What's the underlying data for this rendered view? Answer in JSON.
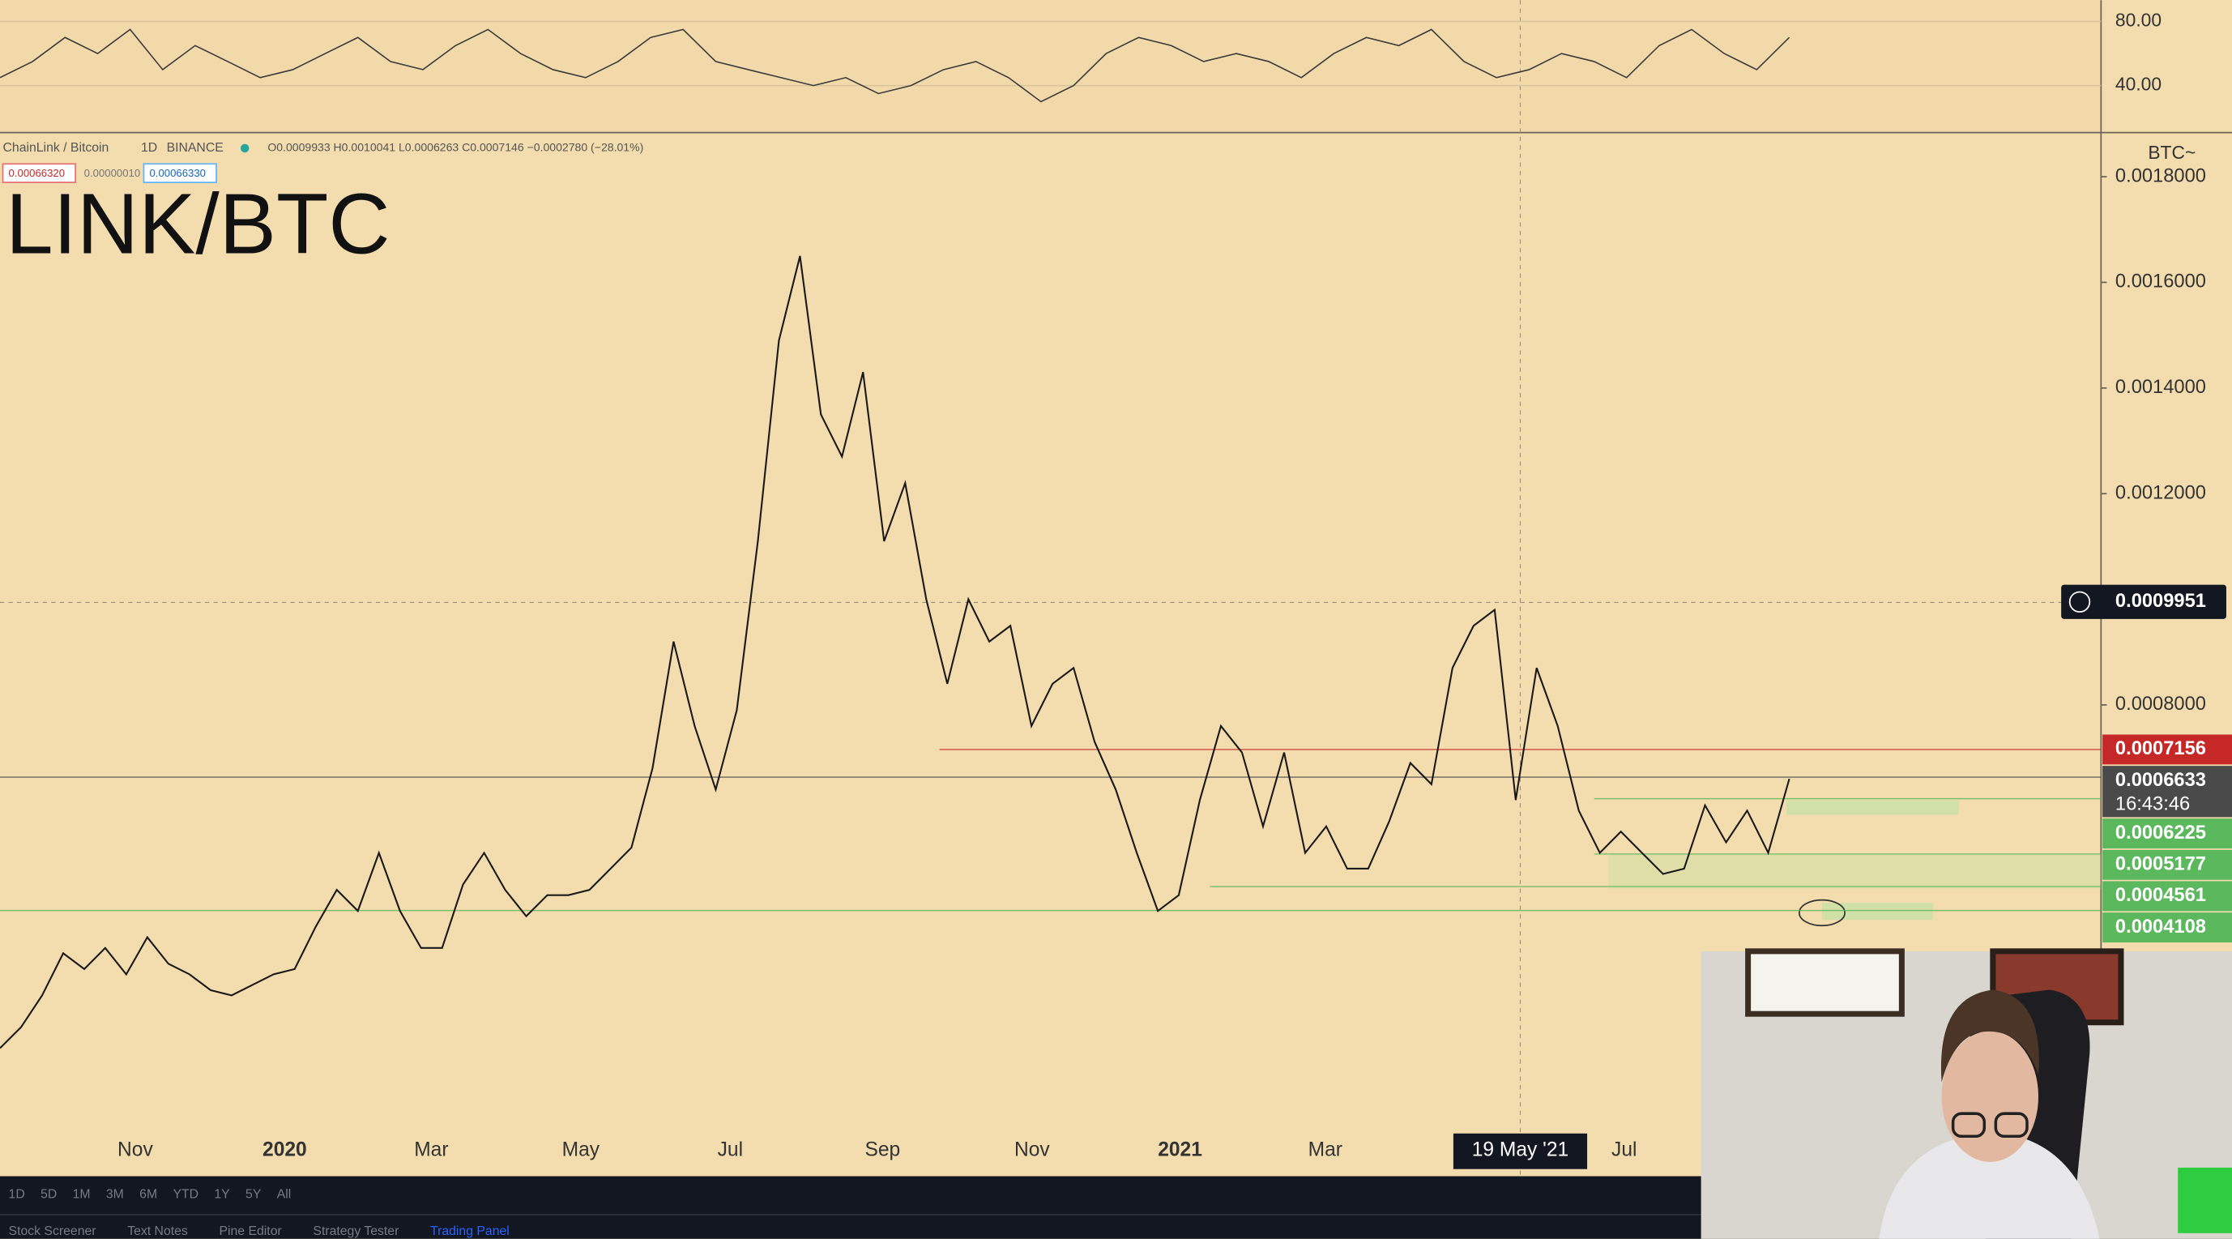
{
  "header": {
    "symbol": "ChainLink / Bitcoin",
    "interval": "1D",
    "exchange": "BINANCE",
    "ohlc": "O0.0009933 H0.0010041 L0.0006263 C0.0007146 −0.0002780 (−28.01%)",
    "inputs": [
      "0.00066320",
      "0.00000010",
      "0.00066330"
    ]
  },
  "title": "LINK/BTC",
  "chart_data": [
    {
      "type": "line",
      "color": "#3a3a3a",
      "values": [
        45,
        55,
        70,
        60,
        75,
        50,
        65,
        55,
        45,
        50,
        60,
        70,
        55,
        50,
        65,
        75,
        60,
        50,
        45,
        55,
        70,
        75,
        55,
        50,
        45,
        40,
        45,
        35,
        40,
        50,
        55,
        45,
        30,
        40,
        60,
        70,
        65,
        55,
        60,
        55,
        45,
        60,
        70,
        65,
        75,
        55,
        45,
        50,
        60,
        55,
        45,
        65,
        75,
        60,
        50,
        70
      ],
      "ylim": [
        10.7,
        93.3
      ],
      "yticks": [
        {
          "value": 80,
          "label": "80.00"
        },
        {
          "value": 40,
          "label": "40.00"
        }
      ]
    },
    {
      "type": "line",
      "color": "#1a1a1a",
      "y_axis_label": "BTC~",
      "values": [
        0.00015,
        0.00019,
        0.00025,
        0.00033,
        0.0003,
        0.00034,
        0.00029,
        0.00036,
        0.00031,
        0.00029,
        0.00026,
        0.00025,
        0.00027,
        0.00029,
        0.0003,
        0.00038,
        0.00045,
        0.00041,
        0.00052,
        0.00041,
        0.00034,
        0.00034,
        0.00046,
        0.00052,
        0.00045,
        0.0004,
        0.00044,
        0.00044,
        0.00045,
        0.00049,
        0.00053,
        0.00068,
        0.00092,
        0.00076,
        0.00064,
        0.00079,
        0.00111,
        0.00149,
        0.00165,
        0.00135,
        0.00127,
        0.00143,
        0.00111,
        0.00122,
        0.001,
        0.00084,
        0.001,
        0.00092,
        0.00095,
        0.00076,
        0.00084,
        0.00087,
        0.00073,
        0.00064,
        0.00052,
        0.00041,
        0.00044,
        0.00062,
        0.00076,
        0.00071,
        0.00057,
        0.00071,
        0.00052,
        0.00057,
        0.00049,
        0.00049,
        0.00058,
        0.00069,
        0.00065,
        0.00087,
        0.00095,
        0.00098,
        0.00062,
        0.00087,
        0.00076,
        0.0006,
        0.00052,
        0.00056,
        0.00052,
        0.00048,
        0.00049,
        0.00061,
        0.00054,
        0.0006,
        0.00052,
        0.00066
      ],
      "ylim": [
        -8.95e-05,
        0.0018836
      ],
      "yticks": [
        {
          "value": 0.0018,
          "label": "0.0018000"
        },
        {
          "value": 0.0016,
          "label": "0.0016000"
        },
        {
          "value": 0.0014,
          "label": "0.0014000"
        },
        {
          "value": 0.0012,
          "label": "0.0012000"
        },
        {
          "value": 0.0008,
          "label": "0.0008000"
        }
      ],
      "x_labels": [
        "Nov",
        "2020",
        "Mar",
        "May",
        "Jul",
        "Sep",
        "Nov",
        "2021",
        "Mar",
        "Jul"
      ],
      "crosshair_x_label": "19 May '21",
      "crosshair_value": 0.0009951,
      "levels": [
        {
          "value": 0.0007156,
          "color": "#c62828"
        },
        {
          "value": 0.0006633,
          "color": "#4a4a4a"
        },
        {
          "value": 0.0006225,
          "color": "#5cb85c"
        },
        {
          "value": 0.0005177,
          "color": "#5cb85c"
        },
        {
          "value": 0.0004561,
          "color": "#5cb85c"
        },
        {
          "value": 0.0004108,
          "color": "#5cb85c"
        }
      ],
      "countdown": "16:43:46"
    }
  ],
  "toolbar": {
    "timeframes": [
      "1D",
      "5D",
      "1M",
      "3M",
      "6M",
      "YTD",
      "1Y",
      "5Y",
      "All"
    ],
    "tabs": [
      "Stock Screener",
      "Text Notes",
      "Pine Editor",
      "Strategy Tester",
      "Trading Panel"
    ]
  }
}
